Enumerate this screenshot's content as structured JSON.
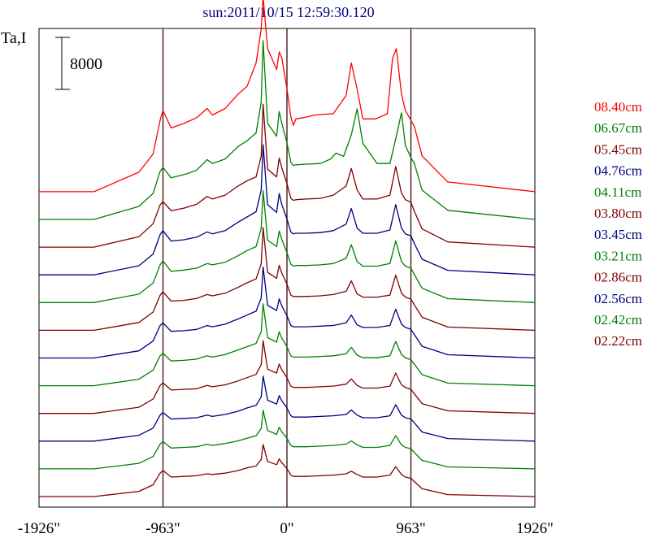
{
  "chart_data": {
    "type": "line",
    "title": "sun:2011/10/15 12:59:30.120",
    "ylabel": "Ta,I",
    "scale_bar_label": "8000",
    "x_ticks": [
      "-1926\"",
      "-963\"",
      "0\"",
      "963\"",
      "1926\""
    ],
    "x_tick_values": [
      -1926,
      -963,
      0,
      963,
      1926
    ],
    "xlim": [
      -1926,
      1926
    ],
    "solar_limb_values": [
      -963,
      963
    ],
    "series": [
      {
        "name": "08.40cm",
        "color": "#ff0000",
        "x": [
          -1926,
          -1500,
          -1150,
          -1040,
          -985,
          -963,
          -900,
          -800,
          -700,
          -620,
          -580,
          -480,
          -380,
          -310,
          -240,
          -200,
          -185,
          -150,
          -80,
          -60,
          -40,
          0,
          30,
          50,
          70,
          130,
          220,
          360,
          460,
          500,
          545,
          590,
          690,
          780,
          820,
          850,
          890,
          920,
          963,
          990,
          1050,
          1250,
          1926
        ],
        "y": [
          0,
          0,
          3000,
          5800,
          11000,
          12500,
          9800,
          10500,
          11400,
          12800,
          11800,
          12800,
          15000,
          16200,
          19800,
          25000,
          30000,
          22000,
          18800,
          21500,
          20600,
          15800,
          11500,
          10200,
          11200,
          11400,
          11800,
          12000,
          14800,
          19800,
          15800,
          11200,
          11200,
          12000,
          20500,
          22000,
          15000,
          12500,
          11000,
          10000,
          5500,
          1500,
          0
        ]
      },
      {
        "name": "06.67cm",
        "color": "#008000",
        "x": [
          -1926,
          -1500,
          -1150,
          -1040,
          -985,
          -963,
          -900,
          -780,
          -700,
          -620,
          -580,
          -480,
          -380,
          -310,
          -240,
          -200,
          -185,
          -150,
          -80,
          -60,
          -40,
          0,
          30,
          50,
          70,
          150,
          260,
          340,
          380,
          440,
          500,
          545,
          590,
          700,
          800,
          845,
          890,
          920,
          963,
          990,
          1050,
          1250,
          1926
        ],
        "y": [
          0,
          0,
          2000,
          4000,
          7400,
          8000,
          6400,
          7000,
          7600,
          9200,
          8600,
          9300,
          11200,
          12100,
          13300,
          18000,
          27500,
          14800,
          12800,
          16600,
          14800,
          11800,
          8800,
          8300,
          8400,
          8500,
          8600,
          9300,
          10200,
          9700,
          13000,
          17000,
          11700,
          8600,
          8600,
          12400,
          16400,
          11400,
          9500,
          8600,
          4500,
          1400,
          0
        ]
      },
      {
        "name": "05.45cm",
        "color": "#800000",
        "x": [
          -1926,
          -1500,
          -1150,
          -1040,
          -985,
          -963,
          -900,
          -800,
          -700,
          -620,
          -580,
          -480,
          -380,
          -310,
          -240,
          -200,
          -185,
          -150,
          -80,
          -60,
          -40,
          0,
          30,
          50,
          70,
          150,
          260,
          360,
          460,
          500,
          545,
          590,
          700,
          800,
          845,
          890,
          920,
          963,
          990,
          1050,
          1250,
          1926
        ],
        "y": [
          0,
          0,
          1600,
          3600,
          6500,
          7000,
          5600,
          6000,
          6600,
          7800,
          7400,
          8000,
          9400,
          10200,
          10800,
          14000,
          22000,
          12000,
          10800,
          13700,
          12200,
          9800,
          7500,
          7200,
          7300,
          7400,
          7500,
          8000,
          9400,
          12100,
          8800,
          7400,
          7400,
          8000,
          12400,
          8300,
          7300,
          6900,
          5500,
          2800,
          800,
          0
        ]
      },
      {
        "name": "04.76cm",
        "color": "#000080",
        "x": [
          -1926,
          -1500,
          -1150,
          -1040,
          -985,
          -963,
          -900,
          -800,
          -700,
          -620,
          -580,
          -480,
          -380,
          -310,
          -240,
          -200,
          -185,
          -150,
          -80,
          -60,
          -40,
          0,
          30,
          50,
          70,
          150,
          260,
          360,
          460,
          500,
          545,
          590,
          700,
          800,
          845,
          890,
          920,
          963,
          990,
          1050,
          1250,
          1926
        ],
        "y": [
          0,
          0,
          1400,
          3200,
          6200,
          6800,
          5200,
          5400,
          5800,
          6600,
          6300,
          6800,
          8100,
          8900,
          9700,
          13000,
          20000,
          10800,
          9600,
          12500,
          10800,
          8600,
          6600,
          6300,
          6400,
          6400,
          6500,
          6800,
          7800,
          10200,
          7200,
          6400,
          6400,
          6900,
          10800,
          7200,
          6300,
          6000,
          4800,
          2400,
          700,
          0
        ]
      },
      {
        "name": "04.11cm",
        "color": "#008000",
        "x": [
          -1926,
          -1500,
          -1150,
          -1040,
          -985,
          -963,
          -900,
          -800,
          -700,
          -620,
          -580,
          -480,
          -380,
          -310,
          -240,
          -200,
          -185,
          -150,
          -80,
          -60,
          -40,
          0,
          30,
          50,
          70,
          150,
          260,
          360,
          460,
          500,
          545,
          590,
          700,
          800,
          845,
          890,
          920,
          963,
          990,
          1050,
          1250,
          1926
        ],
        "y": [
          0,
          0,
          1300,
          3000,
          5800,
          6400,
          4800,
          5000,
          5300,
          6000,
          5800,
          6200,
          7200,
          8000,
          8600,
          11400,
          17200,
          9600,
          8600,
          11000,
          9700,
          7700,
          5900,
          5600,
          5700,
          5700,
          5800,
          6000,
          6800,
          8900,
          6300,
          5600,
          5600,
          6000,
          9500,
          6300,
          5600,
          5300,
          4300,
          2200,
          600,
          0
        ]
      },
      {
        "name": "03.80cm",
        "color": "#800000",
        "x": [
          -1926,
          -1500,
          -1150,
          -1040,
          -985,
          -963,
          -900,
          -800,
          -700,
          -620,
          -580,
          -480,
          -380,
          -310,
          -240,
          -200,
          -185,
          -150,
          -80,
          -60,
          -40,
          0,
          30,
          50,
          70,
          150,
          260,
          360,
          460,
          500,
          545,
          590,
          700,
          800,
          845,
          890,
          920,
          963,
          990,
          1050,
          1250,
          1926
        ],
        "y": [
          0,
          0,
          1200,
          2800,
          5400,
          5900,
          4500,
          4600,
          4900,
          5500,
          5300,
          5700,
          6600,
          7300,
          7900,
          10200,
          15800,
          8900,
          8000,
          10000,
          8800,
          7100,
          5400,
          5200,
          5200,
          5200,
          5300,
          5500,
          6000,
          7600,
          5600,
          5100,
          5100,
          5400,
          8500,
          5700,
          5100,
          4800,
          3900,
          2000,
          500,
          0
        ]
      },
      {
        "name": "03.45cm",
        "color": "#000080",
        "x": [
          -1926,
          -1500,
          -1150,
          -1040,
          -985,
          -963,
          -900,
          -800,
          -700,
          -620,
          -580,
          -480,
          -380,
          -310,
          -240,
          -200,
          -185,
          -150,
          -80,
          -60,
          -40,
          0,
          30,
          50,
          70,
          150,
          260,
          360,
          460,
          500,
          545,
          590,
          700,
          800,
          845,
          890,
          920,
          963,
          990,
          1050,
          1250,
          1926
        ],
        "y": [
          0,
          0,
          1100,
          2600,
          5000,
          5400,
          4100,
          4200,
          4400,
          5000,
          4800,
          5200,
          6000,
          6600,
          7200,
          9200,
          14000,
          8100,
          7300,
          9100,
          8000,
          6500,
          5000,
          4800,
          4800,
          4800,
          4900,
          5000,
          5400,
          6600,
          5100,
          4700,
          4700,
          5000,
          7500,
          5200,
          4700,
          4400,
          3600,
          1800,
          500,
          0
        ]
      },
      {
        "name": "03.21cm",
        "color": "#008000",
        "x": [
          -1926,
          -1500,
          -1150,
          -1040,
          -985,
          -963,
          -900,
          -800,
          -700,
          -620,
          -580,
          -480,
          -380,
          -310,
          -240,
          -200,
          -185,
          -150,
          -80,
          -60,
          -40,
          0,
          30,
          50,
          70,
          150,
          260,
          360,
          460,
          500,
          545,
          590,
          700,
          800,
          845,
          890,
          920,
          963,
          990,
          1050,
          1250,
          1926
        ],
        "y": [
          0,
          0,
          1000,
          2400,
          4600,
          5000,
          3800,
          3900,
          4100,
          4600,
          4400,
          4800,
          5500,
          6000,
          6500,
          8300,
          12600,
          7400,
          6700,
          8300,
          7300,
          6000,
          4600,
          4400,
          4400,
          4400,
          4500,
          4600,
          4900,
          5900,
          4700,
          4300,
          4300,
          4600,
          6800,
          4800,
          4300,
          4000,
          3300,
          1700,
          400,
          0
        ]
      },
      {
        "name": "02.86cm",
        "color": "#800000",
        "x": [
          -1926,
          -1500,
          -1150,
          -1040,
          -985,
          -963,
          -900,
          -800,
          -700,
          -620,
          -580,
          -480,
          -380,
          -310,
          -240,
          -200,
          -185,
          -150,
          -80,
          -60,
          -40,
          0,
          30,
          50,
          70,
          150,
          260,
          360,
          460,
          500,
          545,
          590,
          700,
          800,
          845,
          890,
          920,
          963,
          990,
          1050,
          1250,
          1926
        ],
        "y": [
          0,
          0,
          950,
          2200,
          4300,
          4700,
          3600,
          3700,
          3800,
          4300,
          4100,
          4400,
          5000,
          5500,
          6000,
          7500,
          11200,
          6800,
          6200,
          7600,
          6700,
          5500,
          4200,
          4000,
          4000,
          4000,
          4100,
          4200,
          4500,
          5300,
          4300,
          3900,
          3900,
          4200,
          6200,
          4400,
          4000,
          3700,
          3000,
          1500,
          400,
          0
        ]
      },
      {
        "name": "02.56cm",
        "color": "#000080",
        "x": [
          -1926,
          -1500,
          -1150,
          -1040,
          -985,
          -963,
          -900,
          -800,
          -700,
          -620,
          -580,
          -480,
          -380,
          -310,
          -240,
          -200,
          -185,
          -150,
          -80,
          -60,
          -40,
          0,
          30,
          50,
          70,
          150,
          260,
          360,
          460,
          500,
          545,
          590,
          700,
          800,
          845,
          890,
          920,
          963,
          990,
          1050,
          1250,
          1926
        ],
        "y": [
          0,
          0,
          900,
          2000,
          4000,
          4400,
          3400,
          3500,
          3600,
          4000,
          3800,
          4100,
          4600,
          5100,
          5500,
          6800,
          10000,
          6300,
          5700,
          7000,
          6200,
          5100,
          3900,
          3700,
          3700,
          3700,
          3800,
          3900,
          4100,
          4800,
          4000,
          3600,
          3600,
          3900,
          5600,
          4000,
          3600,
          3400,
          2800,
          1400,
          400,
          0
        ]
      },
      {
        "name": "02.42cm",
        "color": "#008000",
        "x": [
          -1926,
          -1500,
          -1150,
          -1040,
          -985,
          -963,
          -900,
          -800,
          -700,
          -620,
          -580,
          -480,
          -380,
          -310,
          -240,
          -200,
          -185,
          -150,
          -80,
          -60,
          -40,
          0,
          30,
          50,
          70,
          150,
          260,
          360,
          460,
          500,
          545,
          590,
          700,
          800,
          845,
          890,
          920,
          963,
          990,
          1050,
          1250,
          1926
        ],
        "y": [
          0,
          0,
          850,
          1900,
          3800,
          4200,
          3200,
          3300,
          3400,
          3800,
          3600,
          3900,
          4300,
          4700,
          5100,
          6200,
          9000,
          5900,
          5300,
          6400,
          5700,
          4700,
          3600,
          3400,
          3400,
          3400,
          3500,
          3600,
          3800,
          4300,
          3700,
          3300,
          3300,
          3600,
          5100,
          3700,
          3300,
          3100,
          2500,
          1300,
          300,
          0
        ]
      },
      {
        "name": "02.22cm",
        "color": "#800000",
        "x": [
          -1926,
          -1500,
          -1150,
          -1040,
          -985,
          -963,
          -900,
          -800,
          -700,
          -620,
          -580,
          -480,
          -380,
          -310,
          -240,
          -200,
          -185,
          -150,
          -80,
          -60,
          -40,
          0,
          30,
          50,
          70,
          150,
          260,
          360,
          460,
          500,
          545,
          590,
          700,
          800,
          845,
          890,
          920,
          963,
          990,
          1050,
          1250,
          1926
        ],
        "y": [
          0,
          0,
          800,
          1800,
          3600,
          4000,
          3000,
          3100,
          3200,
          3500,
          3400,
          3600,
          4000,
          4400,
          4700,
          5700,
          8000,
          5400,
          4900,
          5800,
          5200,
          4300,
          3300,
          3100,
          3100,
          3100,
          3200,
          3300,
          3500,
          3900,
          3400,
          3000,
          3000,
          3300,
          4600,
          3400,
          3000,
          2800,
          2300,
          1200,
          300,
          0
        ]
      }
    ]
  }
}
